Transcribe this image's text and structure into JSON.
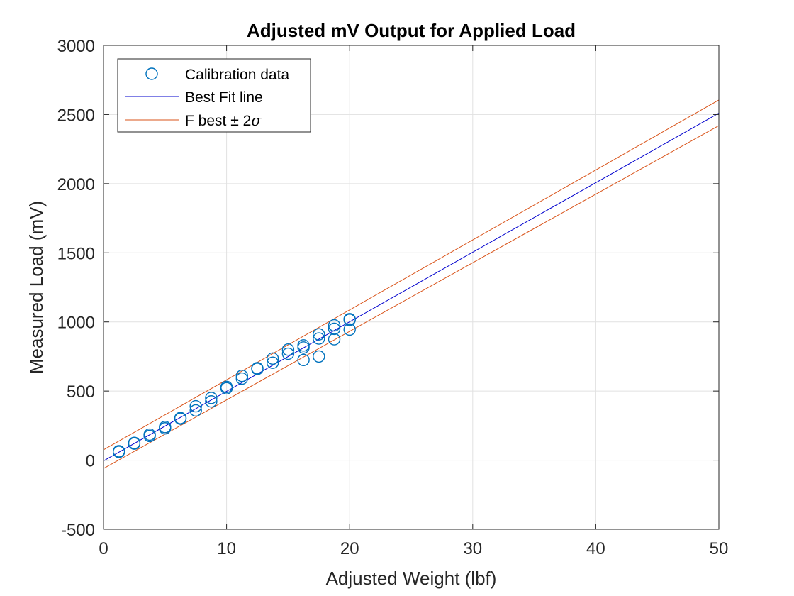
{
  "chart_data": {
    "type": "scatter",
    "title": "Adjusted mV Output for Applied Load",
    "xlabel": "Adjusted Weight (lbf)",
    "ylabel": "Measured Load (mV)",
    "xlim": [
      0,
      50
    ],
    "ylim": [
      -500,
      3000
    ],
    "xticks": [
      0,
      10,
      20,
      30,
      40,
      50
    ],
    "yticks": [
      -500,
      0,
      500,
      1000,
      1500,
      2000,
      2500,
      3000
    ],
    "xtick_labels": [
      "0",
      "10",
      "20",
      "30",
      "40",
      "50"
    ],
    "ytick_labels": [
      "-500",
      "0",
      "500",
      "1000",
      "1500",
      "2000",
      "2500",
      "3000"
    ],
    "grid": true,
    "legend_position": "top-left",
    "series": [
      {
        "name": "Calibration data",
        "kind": "scatter",
        "marker": "circle",
        "color": "#0072BD",
        "points": [
          [
            1.25,
            65
          ],
          [
            1.25,
            60
          ],
          [
            2.5,
            125
          ],
          [
            2.5,
            120
          ],
          [
            3.75,
            185
          ],
          [
            3.75,
            175
          ],
          [
            5.0,
            240
          ],
          [
            5.0,
            230
          ],
          [
            6.25,
            305
          ],
          [
            6.25,
            300
          ],
          [
            7.5,
            390
          ],
          [
            7.5,
            360
          ],
          [
            8.75,
            450
          ],
          [
            8.75,
            425
          ],
          [
            10.0,
            530
          ],
          [
            10.0,
            520
          ],
          [
            11.25,
            610
          ],
          [
            11.25,
            590
          ],
          [
            12.5,
            665
          ],
          [
            12.5,
            660
          ],
          [
            13.75,
            735
          ],
          [
            13.75,
            705
          ],
          [
            15.0,
            800
          ],
          [
            15.0,
            770
          ],
          [
            16.25,
            830
          ],
          [
            16.25,
            815
          ],
          [
            16.25,
            725
          ],
          [
            17.5,
            910
          ],
          [
            17.5,
            880
          ],
          [
            17.5,
            750
          ],
          [
            18.75,
            975
          ],
          [
            18.75,
            950
          ],
          [
            18.75,
            875
          ],
          [
            20.0,
            1020
          ],
          [
            20.0,
            1015
          ],
          [
            20.0,
            945
          ]
        ]
      },
      {
        "name": "Best Fit line",
        "kind": "line",
        "color": "#0000CD",
        "x": [
          0,
          50
        ],
        "y": [
          -5,
          2510
        ]
      },
      {
        "name": "F best ± 2σ",
        "kind": "band",
        "color": "#D95319",
        "upper": {
          "x": [
            0,
            50
          ],
          "y": [
            75,
            2605
          ]
        },
        "lower": {
          "x": [
            0,
            50
          ],
          "y": [
            -60,
            2420
          ]
        }
      }
    ]
  },
  "legend": {
    "items": [
      {
        "label": "Calibration data",
        "symbol": "circle"
      },
      {
        "label": "Best Fit line",
        "symbol": "line"
      },
      {
        "label_prefix": "F best ",
        "label_pm": "±",
        "label_mid": " 2",
        "label_sigma": "σ",
        "symbol": "line"
      }
    ]
  },
  "colors": {
    "data": "#0072BD",
    "fit": "#0000CD",
    "band": "#D95319",
    "grid": "#E1E1E1",
    "axis": "#262626"
  }
}
